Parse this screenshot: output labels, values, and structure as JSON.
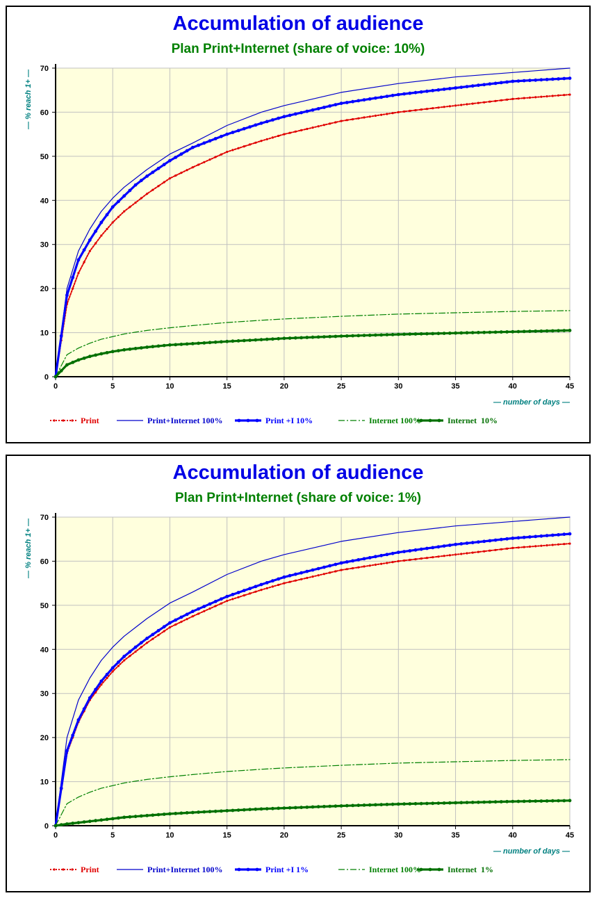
{
  "charts": [
    {
      "title": "Accumulation of audience",
      "subtitle": "Plan Print+Internet (share of voice: 10%)",
      "chart_data": {
        "type": "line",
        "title": "Accumulation of audience",
        "subtitle": "Plan Print+Internet (share of voice: 10%)",
        "xlabel": "— number of days —",
        "ylabel": "— % reach 1+ —",
        "xlim": [
          0,
          45
        ],
        "ylim": [
          0,
          70
        ],
        "xticks": [
          "0",
          "5",
          "10",
          "15",
          "20",
          "25",
          "30",
          "35",
          "40",
          "45"
        ],
        "yticks": [
          "0",
          "10",
          "20",
          "30",
          "40",
          "50",
          "60",
          "70"
        ],
        "grid": true,
        "legend": "bottom",
        "x": [
          0,
          1,
          2,
          3,
          4,
          5,
          6,
          7,
          8,
          10,
          12,
          15,
          18,
          20,
          25,
          30,
          35,
          40,
          45
        ],
        "series": [
          {
            "name": "Print",
            "color": "#e00000",
            "style": "dotted-markers",
            "values": [
              0,
              16.5,
              23.5,
              28.5,
              32,
              35,
              37.5,
              39.5,
              41.5,
              45,
              47.5,
              51,
              53.5,
              55,
              58,
              60,
              61.5,
              63,
              64
            ]
          },
          {
            "name": "Print+Internet 100%",
            "color": "#0000cc",
            "style": "thin",
            "values": [
              0,
              20,
              28.5,
              33.5,
              37.5,
              40.5,
              43,
              45,
              47,
              50.5,
              53,
              57,
              60,
              61.5,
              64.5,
              66.5,
              68,
              69,
              70
            ]
          },
          {
            "name": "Print +I 10%",
            "color": "#0000ff",
            "style": "thick-markers",
            "values": [
              0,
              18.5,
              26.5,
              31,
              35,
              38.5,
              41,
              43.5,
              45.5,
              49,
              52,
              55,
              57.5,
              59,
              62,
              64,
              65.5,
              67,
              67.7
            ]
          },
          {
            "name": "Internet 100%",
            "color": "#008000",
            "style": "dashdot",
            "values": [
              0,
              5,
              6.5,
              7.6,
              8.5,
              9.1,
              9.7,
              10.1,
              10.5,
              11.1,
              11.6,
              12.3,
              12.8,
              13.1,
              13.7,
              14.2,
              14.5,
              14.8,
              15
            ]
          },
          {
            "name": "Internet  10%",
            "color": "#007000",
            "style": "thick-markers",
            "values": [
              0,
              2.7,
              3.8,
              4.6,
              5.2,
              5.7,
              6.1,
              6.4,
              6.7,
              7.2,
              7.5,
              8,
              8.4,
              8.7,
              9.2,
              9.6,
              9.9,
              10.2,
              10.5
            ]
          }
        ]
      }
    },
    {
      "title": "Accumulation of audience",
      "subtitle": "Plan Print+Internet (share of voice: 1%)",
      "chart_data": {
        "type": "line",
        "title": "Accumulation of audience",
        "subtitle": "Plan Print+Internet (share of voice: 1%)",
        "xlabel": "— number of days —",
        "ylabel": "— % reach 1+ —",
        "xlim": [
          0,
          45
        ],
        "ylim": [
          0,
          70
        ],
        "xticks": [
          "0",
          "5",
          "10",
          "15",
          "20",
          "25",
          "30",
          "35",
          "40",
          "45"
        ],
        "yticks": [
          "0",
          "10",
          "20",
          "30",
          "40",
          "50",
          "60",
          "70"
        ],
        "grid": true,
        "legend": "bottom",
        "x": [
          0,
          1,
          2,
          3,
          4,
          5,
          6,
          7,
          8,
          10,
          12,
          15,
          18,
          20,
          25,
          30,
          35,
          40,
          45
        ],
        "series": [
          {
            "name": "Print",
            "color": "#e00000",
            "style": "dotted-markers",
            "values": [
              0,
              16.5,
              23.5,
              28.5,
              32,
              35,
              37.5,
              39.5,
              41.5,
              45,
              47.5,
              51,
              53.5,
              55,
              58,
              60,
              61.5,
              63,
              64
            ]
          },
          {
            "name": "Print+Internet 100%",
            "color": "#0000cc",
            "style": "thin",
            "values": [
              0,
              20,
              28.5,
              33.5,
              37.5,
              40.5,
              43,
              45,
              47,
              50.5,
              53,
              57,
              60,
              61.5,
              64.5,
              66.5,
              68,
              69,
              70
            ]
          },
          {
            "name": "Print +I 1%",
            "color": "#0000ff",
            "style": "thick-markers",
            "values": [
              0,
              17,
              24,
              29,
              32.8,
              35.8,
              38.4,
              40.5,
              42.5,
              46,
              48.6,
              52,
              54.7,
              56.4,
              59.6,
              62,
              63.8,
              65.2,
              66.2
            ]
          },
          {
            "name": "Internet 100%",
            "color": "#008000",
            "style": "dashdot",
            "values": [
              0,
              5,
              6.5,
              7.6,
              8.5,
              9.1,
              9.7,
              10.1,
              10.5,
              11.1,
              11.6,
              12.3,
              12.8,
              13.1,
              13.7,
              14.2,
              14.5,
              14.8,
              15
            ]
          },
          {
            "name": "Internet  1%",
            "color": "#007000",
            "style": "thick-markers",
            "values": [
              0,
              0.4,
              0.7,
              1,
              1.3,
              1.6,
              1.9,
              2.1,
              2.3,
              2.7,
              3,
              3.4,
              3.8,
              4,
              4.5,
              4.9,
              5.2,
              5.5,
              5.7
            ]
          }
        ]
      }
    }
  ]
}
